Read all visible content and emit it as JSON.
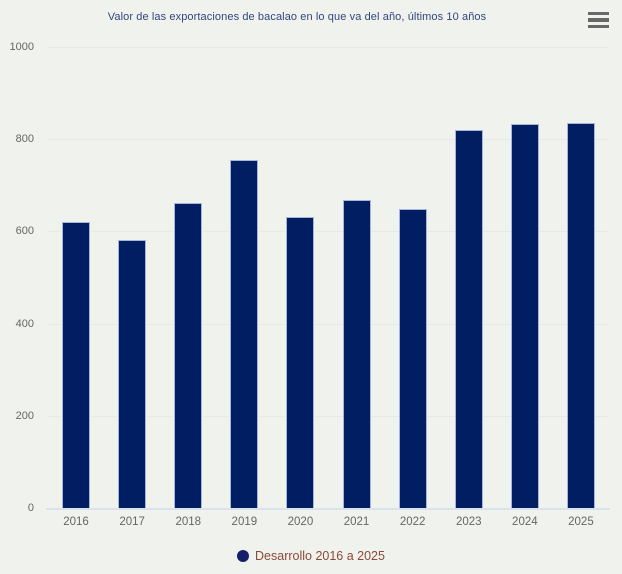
{
  "title": "Valor de las exportaciones de bacalao en lo que va del año, últimos 10 años",
  "menu": {
    "icon": "hamburger-menu-icon"
  },
  "chart_data": {
    "type": "bar",
    "title": "Valor de las exportaciones de bacalao en lo que va del año, últimos 10 años",
    "categories": [
      "2016",
      "2017",
      "2018",
      "2019",
      "2020",
      "2021",
      "2022",
      "2023",
      "2024",
      "2025"
    ],
    "series": [
      {
        "name": "Desarrollo 2016 a 2025",
        "values": [
          620,
          582,
          661,
          755,
          631,
          669,
          648,
          821,
          832,
          835
        ]
      }
    ],
    "xlabel": "",
    "ylabel": "",
    "ylim": [
      0,
      1000
    ],
    "yticks": [
      0,
      200,
      400,
      600,
      800,
      1000
    ],
    "grid": true,
    "legend_position": "bottom-center",
    "legend": "Desarrollo 2016 a 2025"
  },
  "colors": {
    "background": "#f0f2ee",
    "bar_fill": "#021e63",
    "bar_border": "#a9b4d6",
    "legend_marker": "#122169",
    "legend_text": "#8b4a38",
    "title_text": "#31477c",
    "axis_label": "#666666",
    "gridline": "#e7e9e5",
    "axis_line": "#dce1ee",
    "menu_icon": "#676767"
  }
}
